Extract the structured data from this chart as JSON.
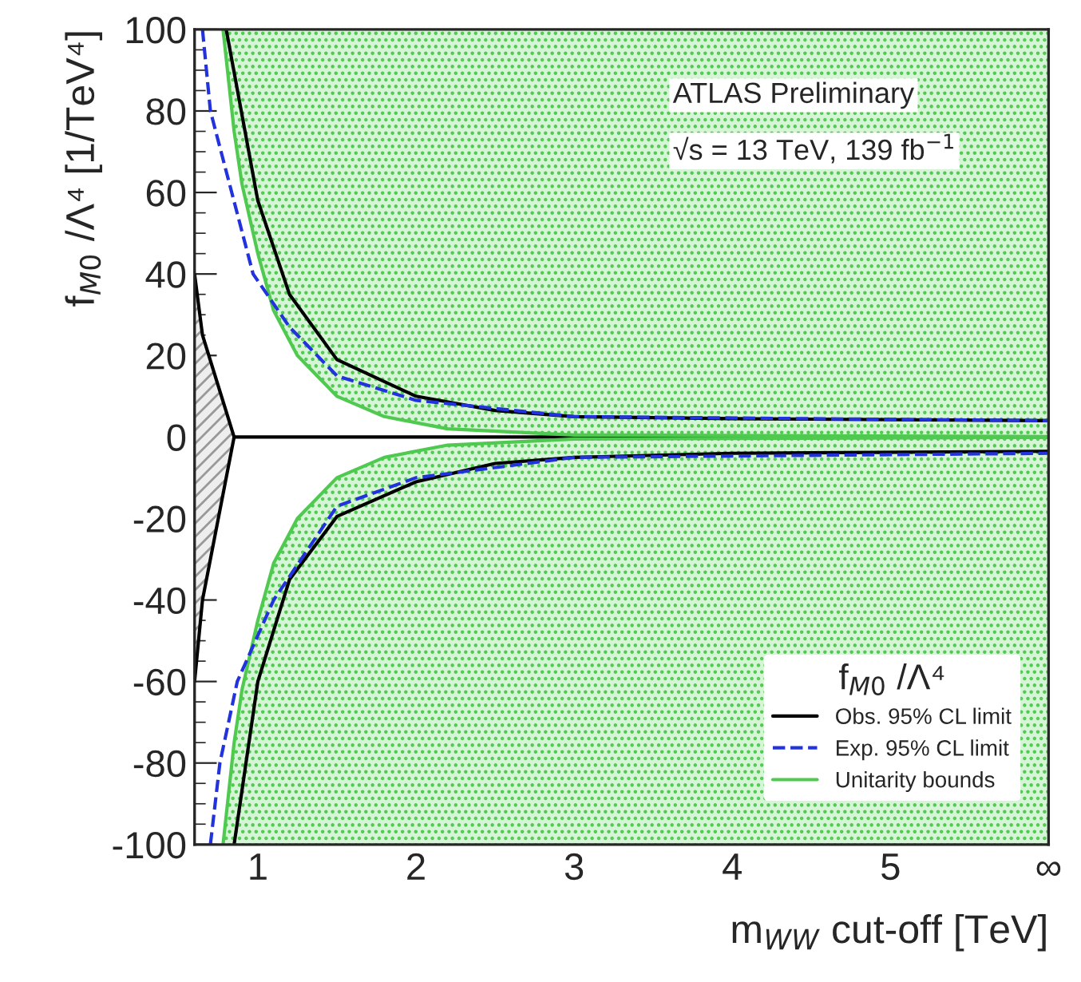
{
  "chart_data": {
    "type": "line",
    "xlabel": "m$_{WW}$ cut-off [TeV]",
    "ylabel": "f$_{M0}$ /Λ⁴ [1/TeV⁴]",
    "legend_title": "f$_{M0}$ /Λ⁴",
    "annotations": [
      "ATLAS Preliminary",
      "√s = 13 TeV, 139 fb$^{−1}$"
    ],
    "xlim": [
      0.6,
      6
    ],
    "ylim": [
      -100,
      100
    ],
    "xticks": [
      1,
      2,
      3,
      4,
      5,
      {
        "value": 6,
        "label": "∞"
      }
    ],
    "yticks": [
      -100,
      -80,
      -60,
      -40,
      -20,
      0,
      20,
      40,
      60,
      80,
      100
    ],
    "legend": "bottom right",
    "series": [
      {
        "color": "#000000",
        "x": [
          0.6,
          0.65,
          0.85,
          6
        ],
        "values": [
          40,
          25,
          0,
          0
        ],
        "lower": [
          -60,
          -40,
          0,
          0
        ],
        "upper": [
          40,
          25,
          0,
          0
        ]
      },
      {
        "color": "#000000",
        "x": [
          0.6,
          0.65,
          0.85
        ],
        "values": [
          -60,
          -40,
          0
        ]
      },
      {
        "name": "Obs. 95% CL limit",
        "color": "#000000",
        "line_style": "solid",
        "x": [
          0.8,
          1.0,
          1.2,
          1.5,
          2.0,
          2.5,
          3,
          4,
          6
        ],
        "values": [
          100,
          58,
          35,
          19,
          10,
          6.5,
          5,
          4.5,
          4
        ]
      },
      {
        "color": "#000000",
        "line_style": "solid",
        "x": [
          0.85,
          1.0,
          1.2,
          1.5,
          2.0,
          2.5,
          3,
          4,
          6
        ],
        "values": [
          -100,
          -60,
          -35,
          -19.5,
          -11,
          -6.5,
          -5,
          -4,
          -3.5
        ]
      },
      {
        "name": "Exp. 95% CL limit",
        "color": "#2233dd",
        "line_style": "dashed",
        "x": [
          0.65,
          0.7,
          0.97,
          1.2,
          1.5,
          2,
          3,
          6
        ],
        "values": [
          100,
          80,
          40,
          27,
          15,
          9,
          5,
          4
        ]
      },
      {
        "color": "#2233dd",
        "line_style": "dashed",
        "x": [
          0.7,
          0.76,
          0.87,
          1.1,
          1.5,
          2,
          3,
          6
        ],
        "values": [
          -100,
          -80,
          -60,
          -40,
          -17,
          -10,
          -5,
          -4
        ]
      },
      {
        "name": "Unitarity bounds",
        "color": "#4fc94f",
        "x": [
          0.78,
          0.85,
          0.9,
          1.0,
          1.1,
          1.25,
          1.5,
          1.8,
          2.2,
          3,
          6
        ],
        "values": [
          100,
          75,
          62,
          45,
          31,
          20,
          10,
          5,
          2,
          0.5,
          0.1
        ],
        "lower": [
          100,
          75,
          62,
          45,
          31,
          20,
          10,
          5,
          2,
          0.5,
          0.1
        ],
        "upper": [
          100,
          100,
          100,
          100,
          100,
          100,
          100,
          100,
          100,
          100,
          100
        ]
      },
      {
        "color": "#4fc94f",
        "x": [
          0.78,
          0.85,
          0.9,
          1.0,
          1.1,
          1.25,
          1.5,
          1.8,
          2.2,
          3,
          6
        ],
        "values": [
          -100,
          -75,
          -62,
          -45,
          -31,
          -20,
          -10,
          -5,
          -2,
          -0.5,
          -0.1
        ],
        "lower": [
          -100,
          -100,
          -100,
          -100,
          -100,
          -100,
          -100,
          -100,
          -100,
          -100,
          -100
        ],
        "upper": [
          -100,
          -75,
          -62,
          -45,
          -31,
          -20,
          -10,
          -5,
          -2,
          -0.5,
          -0.1
        ]
      }
    ]
  }
}
